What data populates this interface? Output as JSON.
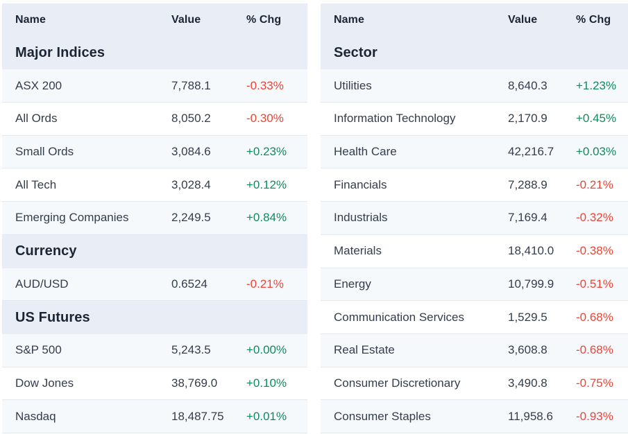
{
  "colors": {
    "positive": "#0f8a5b",
    "negative": "#ee4334",
    "header_background": "#e9edf6",
    "alt_row_background": "#f6f9fc"
  },
  "tables": [
    {
      "id": "market-overview",
      "columns": [
        "Name",
        "Value",
        "% Chg"
      ],
      "sections": [
        {
          "label": "Major Indices",
          "rows": [
            {
              "name": "ASX 200",
              "value": "7,788.1",
              "chg": "-0.33%",
              "direction": "down"
            },
            {
              "name": "All Ords",
              "value": "8,050.2",
              "chg": "-0.30%",
              "direction": "down"
            },
            {
              "name": "Small Ords",
              "value": "3,084.6",
              "chg": "+0.23%",
              "direction": "up"
            },
            {
              "name": "All Tech",
              "value": "3,028.4",
              "chg": "+0.12%",
              "direction": "up"
            },
            {
              "name": "Emerging Companies",
              "value": "2,249.5",
              "chg": "+0.84%",
              "direction": "up"
            }
          ]
        },
        {
          "label": "Currency",
          "rows": [
            {
              "name": "AUD/USD",
              "value": "0.6524",
              "chg": "-0.21%",
              "direction": "down"
            }
          ]
        },
        {
          "label": "US Futures",
          "rows": [
            {
              "name": "S&P 500",
              "value": "5,243.5",
              "chg": "+0.00%",
              "direction": "up"
            },
            {
              "name": "Dow Jones",
              "value": "38,769.0",
              "chg": "+0.10%",
              "direction": "up"
            },
            {
              "name": "Nasdaq",
              "value": "18,487.75",
              "chg": "+0.01%",
              "direction": "up"
            }
          ]
        }
      ]
    },
    {
      "id": "sectors",
      "columns": [
        "Name",
        "Value",
        "% Chg"
      ],
      "sections": [
        {
          "label": "Sector",
          "rows": [
            {
              "name": "Utilities",
              "value": "8,640.3",
              "chg": "+1.23%",
              "direction": "up"
            },
            {
              "name": "Information Technology",
              "value": "2,170.9",
              "chg": "+0.45%",
              "direction": "up"
            },
            {
              "name": "Health Care",
              "value": "42,216.7",
              "chg": "+0.03%",
              "direction": "up"
            },
            {
              "name": "Financials",
              "value": "7,288.9",
              "chg": "-0.21%",
              "direction": "down"
            },
            {
              "name": "Industrials",
              "value": "7,169.4",
              "chg": "-0.32%",
              "direction": "down"
            },
            {
              "name": "Materials",
              "value": "18,410.0",
              "chg": "-0.38%",
              "direction": "down"
            },
            {
              "name": "Energy",
              "value": "10,799.9",
              "chg": "-0.51%",
              "direction": "down"
            },
            {
              "name": "Communication Services",
              "value": "1,529.5",
              "chg": "-0.68%",
              "direction": "down"
            },
            {
              "name": "Real Estate",
              "value": "3,608.8",
              "chg": "-0.68%",
              "direction": "down"
            },
            {
              "name": "Consumer Discretionary",
              "value": "3,490.8",
              "chg": "-0.75%",
              "direction": "down"
            },
            {
              "name": "Consumer Staples",
              "value": "11,958.6",
              "chg": "-0.93%",
              "direction": "down"
            }
          ]
        }
      ]
    }
  ]
}
